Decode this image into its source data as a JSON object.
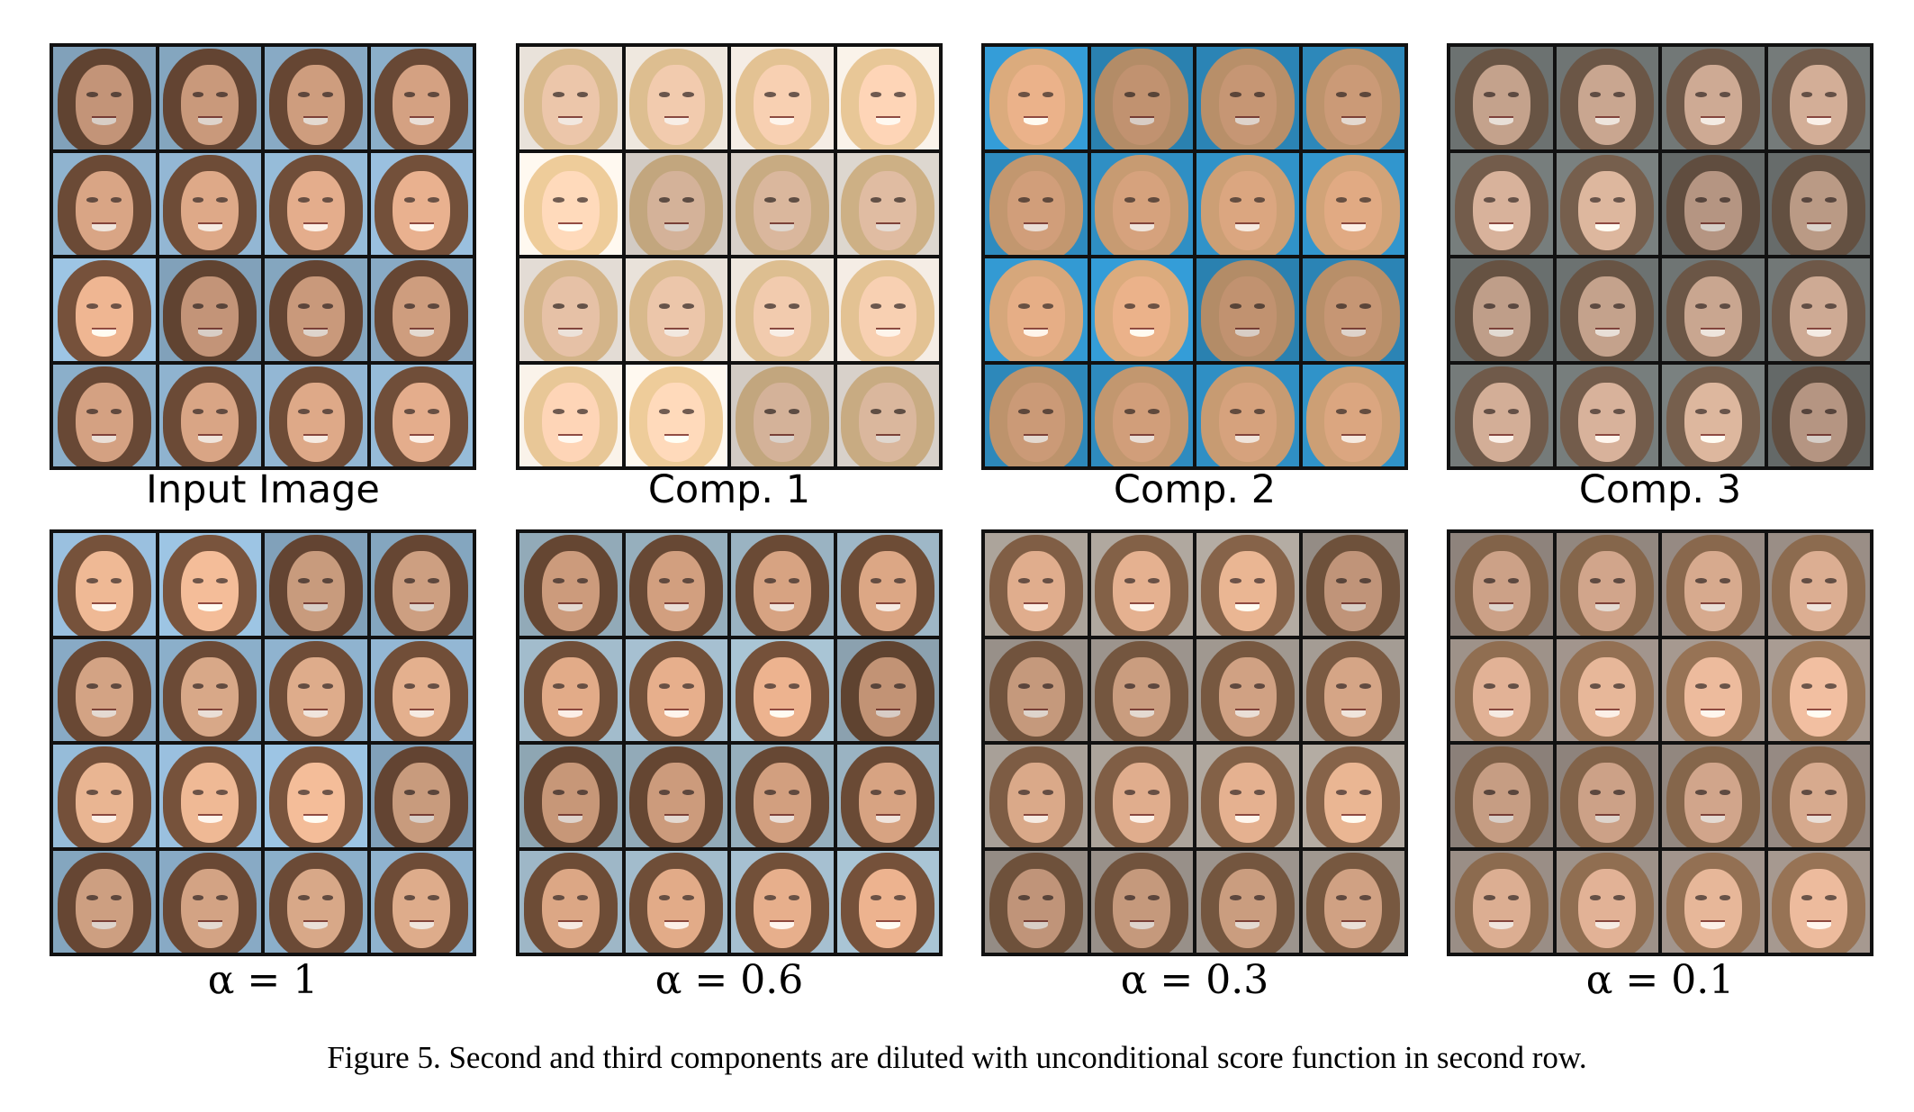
{
  "figure": {
    "labels_top": [
      "Input Image",
      "Comp. 1",
      "Comp. 2",
      "Comp. 3"
    ],
    "labels_bottom": [
      "α = 1",
      "α = 0.6",
      "α = 0.3",
      "α = 0.1"
    ],
    "caption": "Figure 5. Second and third components are diluted with unconditional score function in second row."
  },
  "grids": [
    {
      "bg": "#8fb3cf",
      "hair": "#6b4a36",
      "face": "#d9a585"
    },
    {
      "bg": "#e9e2da",
      "hair": "#d8b98c",
      "face": "#ecc6aa"
    },
    {
      "bg": "#2f8fc4",
      "hair": "#c79b72",
      "face": "#d6a27d"
    },
    {
      "bg": "#6f7574",
      "hair": "#6b5646",
      "face": "#c9a690"
    },
    {
      "bg": "#8fb3cf",
      "hair": "#6e4c37",
      "face": "#deac8b"
    },
    {
      "bg": "#9ab3c2",
      "hair": "#6a4a35",
      "face": "#d7a382"
    },
    {
      "bg": "#a49c94",
      "hair": "#7a5a42",
      "face": "#d5a586"
    },
    {
      "bg": "#9a8e86",
      "hair": "#8c6b4f",
      "face": "#dcae92"
    }
  ]
}
